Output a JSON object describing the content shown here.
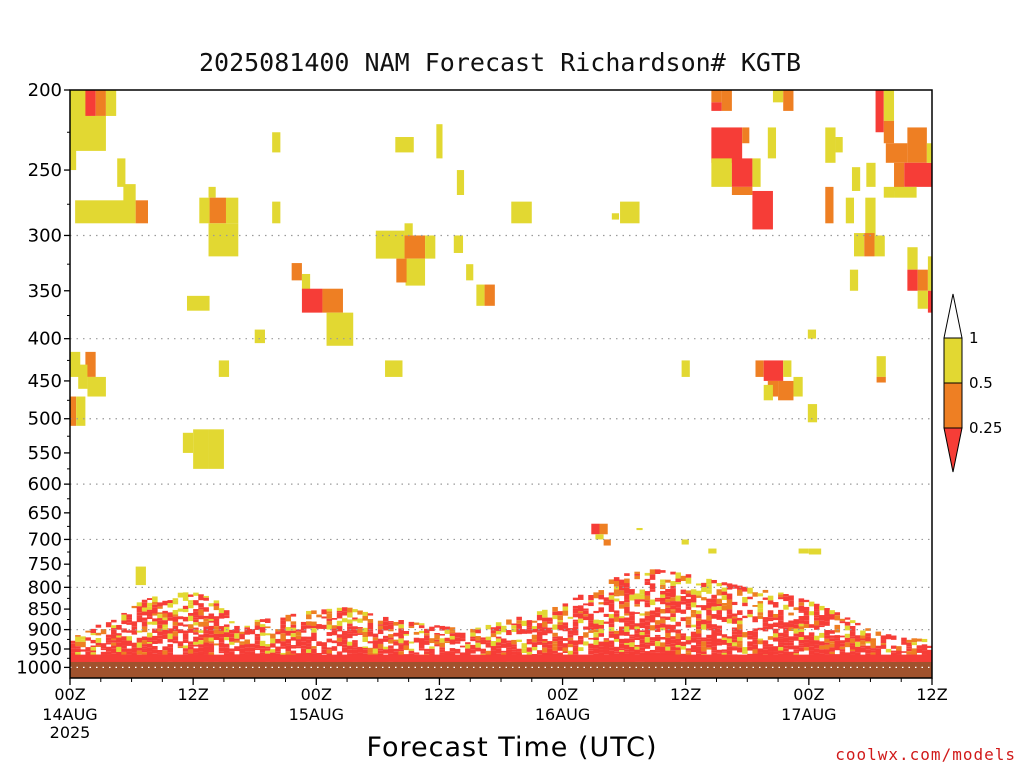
{
  "chart_data": {
    "type": "heatmap",
    "title": "2025081400 NAM Forecast Richardson# KGTB",
    "xlabel": "Forecast Time (UTC)",
    "ylabel": "",
    "y_scale": "log",
    "y_inverted": true,
    "y_range": [
      1030,
      200
    ],
    "x_range_hours": [
      0,
      84
    ],
    "y_ticks": [
      200,
      250,
      300,
      350,
      400,
      450,
      500,
      550,
      600,
      650,
      700,
      750,
      800,
      850,
      900,
      950,
      1000
    ],
    "y_gridlines": [
      300,
      400,
      500,
      600,
      700,
      800,
      900,
      1000
    ],
    "x_ticks": [
      {
        "hour": 0,
        "label": "00Z",
        "sub": "14AUG",
        "sub2": "2025"
      },
      {
        "hour": 12,
        "label": "12Z",
        "sub": "",
        "sub2": ""
      },
      {
        "hour": 24,
        "label": "00Z",
        "sub": "15AUG",
        "sub2": ""
      },
      {
        "hour": 36,
        "label": "12Z",
        "sub": "",
        "sub2": ""
      },
      {
        "hour": 48,
        "label": "00Z",
        "sub": "16AUG",
        "sub2": ""
      },
      {
        "hour": 60,
        "label": "12Z",
        "sub": "",
        "sub2": ""
      },
      {
        "hour": 72,
        "label": "00Z",
        "sub": "17AUG",
        "sub2": ""
      },
      {
        "hour": 84,
        "label": "12Z",
        "sub": "",
        "sub2": ""
      }
    ],
    "colorbar": {
      "labels": [
        "1",
        "0.5",
        "0.25"
      ],
      "levels": [
        {
          "min": 0.5,
          "max": 1,
          "color": "#e2d832"
        },
        {
          "min": 0.25,
          "max": 0.5,
          "color": "#ee7f23"
        },
        {
          "min": 0,
          "max": 0.25,
          "color": "#f63d37"
        }
      ]
    },
    "ground_color": "#a0522d",
    "surface_pressure": 985,
    "cells": [
      [
        0,
        2,
        200,
        230,
        0.7
      ],
      [
        1.5,
        2.5,
        200,
        215,
        0.1
      ],
      [
        2.5,
        3.5,
        200,
        215,
        0.3
      ],
      [
        3.5,
        4.5,
        200,
        215,
        0.7
      ],
      [
        0,
        3.5,
        215,
        237,
        0.7
      ],
      [
        0,
        0.6,
        230,
        250,
        0.7
      ],
      [
        4.6,
        5.4,
        242,
        262,
        0.7
      ],
      [
        5.2,
        6.4,
        260,
        275,
        0.7
      ],
      [
        0.5,
        6.4,
        272,
        290,
        0.7
      ],
      [
        6.4,
        7.6,
        272,
        290,
        0.3
      ],
      [
        13.5,
        14.2,
        262,
        270,
        0.7
      ],
      [
        12.6,
        13.6,
        270,
        290,
        0.7
      ],
      [
        13.6,
        15.2,
        270,
        290,
        0.3
      ],
      [
        15.2,
        16.4,
        270,
        290,
        0.7
      ],
      [
        13.5,
        16.4,
        290,
        318,
        0.7
      ],
      [
        19.7,
        20.5,
        225,
        238,
        0.7
      ],
      [
        19.7,
        20.5,
        273,
        290,
        0.7
      ],
      [
        31.7,
        33.5,
        228,
        238,
        0.7
      ],
      [
        35.7,
        36.3,
        220,
        242,
        0.7
      ],
      [
        37.7,
        38.4,
        250,
        268,
        0.7
      ],
      [
        29.8,
        32.6,
        296,
        320,
        0.7
      ],
      [
        32.6,
        33.4,
        290,
        300,
        0.7
      ],
      [
        32.6,
        34.6,
        300,
        320,
        0.3
      ],
      [
        34.6,
        35.6,
        300,
        320,
        0.7
      ],
      [
        32.7,
        34.6,
        320,
        345,
        0.7
      ],
      [
        31.8,
        32.8,
        320,
        342,
        0.3
      ],
      [
        37.4,
        38.3,
        300,
        315,
        0.7
      ],
      [
        38.6,
        39.3,
        325,
        340,
        0.7
      ],
      [
        21.6,
        22.6,
        324,
        340,
        0.3
      ],
      [
        22.6,
        23.4,
        334,
        350,
        0.7
      ],
      [
        22.6,
        24.6,
        348,
        372,
        0.1
      ],
      [
        24.6,
        26.6,
        348,
        372,
        0.3
      ],
      [
        25,
        27.6,
        372,
        408,
        0.7
      ],
      [
        11.4,
        13.6,
        355,
        370,
        0.7
      ],
      [
        39.6,
        40.4,
        344,
        365,
        0.7
      ],
      [
        40.4,
        41.4,
        344,
        365,
        0.3
      ],
      [
        43,
        45,
        273,
        290,
        0.7
      ],
      [
        53.6,
        55.5,
        273,
        290,
        0.7
      ],
      [
        52.8,
        53.5,
        282,
        287,
        0.7
      ],
      [
        62.5,
        63.5,
        200,
        207,
        0.3
      ],
      [
        63.5,
        64.5,
        200,
        212,
        0.3
      ],
      [
        62.5,
        63.5,
        207,
        212,
        0.1
      ],
      [
        62.5,
        65.5,
        222,
        245,
        0.1
      ],
      [
        65.5,
        66.2,
        222,
        232,
        0.3
      ],
      [
        62.5,
        64.5,
        242,
        262,
        0.7
      ],
      [
        64.5,
        66.5,
        242,
        262,
        0.1
      ],
      [
        66.5,
        67.3,
        242,
        262,
        0.7
      ],
      [
        68,
        68.8,
        222,
        242,
        0.7
      ],
      [
        64.5,
        66.5,
        262,
        268,
        0.3
      ],
      [
        66.5,
        68.5,
        265,
        295,
        0.1
      ],
      [
        68.5,
        69.5,
        200,
        207,
        0.7
      ],
      [
        69.5,
        70.5,
        200,
        212,
        0.3
      ],
      [
        73.6,
        74.6,
        222,
        245,
        0.7
      ],
      [
        74.6,
        75.3,
        228,
        238,
        0.7
      ],
      [
        77.6,
        78.5,
        245,
        262,
        0.7
      ],
      [
        78.5,
        79.3,
        200,
        225,
        0.1
      ],
      [
        79.3,
        80.3,
        200,
        218,
        0.7
      ],
      [
        79.3,
        80.3,
        218,
        232,
        0.3
      ],
      [
        79.5,
        81.6,
        232,
        245,
        0.3
      ],
      [
        81.6,
        83.5,
        222,
        245,
        0.3
      ],
      [
        80.3,
        81.3,
        245,
        265,
        0.3
      ],
      [
        81.3,
        84,
        245,
        262,
        0.1
      ],
      [
        83.5,
        84,
        232,
        245,
        0.7
      ],
      [
        79.3,
        80.3,
        262,
        270,
        0.7
      ],
      [
        80.3,
        82.5,
        262,
        270,
        0.7
      ],
      [
        73.6,
        74.4,
        262,
        290,
        0.3
      ],
      [
        75.6,
        76.4,
        270,
        290,
        0.7
      ],
      [
        76.2,
        77,
        248,
        265,
        0.7
      ],
      [
        77.5,
        78.5,
        270,
        300,
        0.7
      ],
      [
        76.4,
        77.4,
        298,
        318,
        0.7
      ],
      [
        77.4,
        78.4,
        298,
        318,
        0.3
      ],
      [
        78.4,
        79.4,
        300,
        318,
        0.7
      ],
      [
        76,
        76.8,
        330,
        350,
        0.7
      ],
      [
        81.6,
        82.6,
        310,
        330,
        0.7
      ],
      [
        81.6,
        82.6,
        330,
        350,
        0.1
      ],
      [
        82.6,
        83.6,
        330,
        350,
        0.3
      ],
      [
        83.6,
        84,
        318,
        350,
        0.7
      ],
      [
        83.6,
        84,
        350,
        372,
        0.1
      ],
      [
        82.6,
        83.6,
        350,
        368,
        0.7
      ],
      [
        71.9,
        72.7,
        390,
        400,
        0.7
      ],
      [
        66.8,
        67.6,
        425,
        445,
        0.3
      ],
      [
        67.6,
        69.5,
        425,
        450,
        0.1
      ],
      [
        69.5,
        70.3,
        425,
        445,
        0.7
      ],
      [
        68,
        69,
        450,
        470,
        0.3
      ],
      [
        69,
        70.5,
        450,
        475,
        0.3
      ],
      [
        67.6,
        68.5,
        455,
        475,
        0.7
      ],
      [
        70.5,
        71.4,
        445,
        470,
        0.7
      ],
      [
        71.9,
        72.8,
        480,
        505,
        0.7
      ],
      [
        78.6,
        79.5,
        420,
        445,
        0.7
      ],
      [
        78.6,
        79.5,
        445,
        452,
        0.3
      ],
      [
        0,
        1,
        415,
        445,
        0.7
      ],
      [
        1.5,
        2.5,
        415,
        445,
        0.3
      ],
      [
        0.8,
        1.7,
        430,
        460,
        0.7
      ],
      [
        1.7,
        3.5,
        445,
        470,
        0.7
      ],
      [
        0,
        0.6,
        470,
        510,
        0.3
      ],
      [
        0.6,
        1.5,
        470,
        510,
        0.7
      ],
      [
        11,
        12,
        520,
        550,
        0.7
      ],
      [
        12,
        13.5,
        515,
        575,
        0.7
      ],
      [
        13.5,
        15,
        515,
        575,
        0.7
      ],
      [
        18,
        19,
        390,
        405,
        0.7
      ],
      [
        14.5,
        15.5,
        425,
        445,
        0.7
      ],
      [
        30.7,
        32.4,
        425,
        445,
        0.7
      ],
      [
        59.6,
        60.4,
        425,
        445,
        0.7
      ],
      [
        50.8,
        51.6,
        670,
        690,
        0.1
      ],
      [
        51.6,
        52.4,
        670,
        690,
        0.3
      ],
      [
        51.2,
        52,
        690,
        700,
        0.7
      ],
      [
        52,
        52.7,
        700,
        712,
        0.3
      ],
      [
        55.2,
        55.8,
        678,
        682,
        0.7
      ],
      [
        59.6,
        60.3,
        700,
        710,
        0.7
      ],
      [
        62.2,
        63,
        718,
        728,
        0.7
      ],
      [
        71,
        72,
        718,
        728,
        0.7
      ],
      [
        72,
        73.2,
        718,
        730,
        0.7
      ],
      [
        6.4,
        7.4,
        755,
        795,
        0.7
      ]
    ]
  },
  "footer": {
    "credit": "coolwx.com/models"
  }
}
